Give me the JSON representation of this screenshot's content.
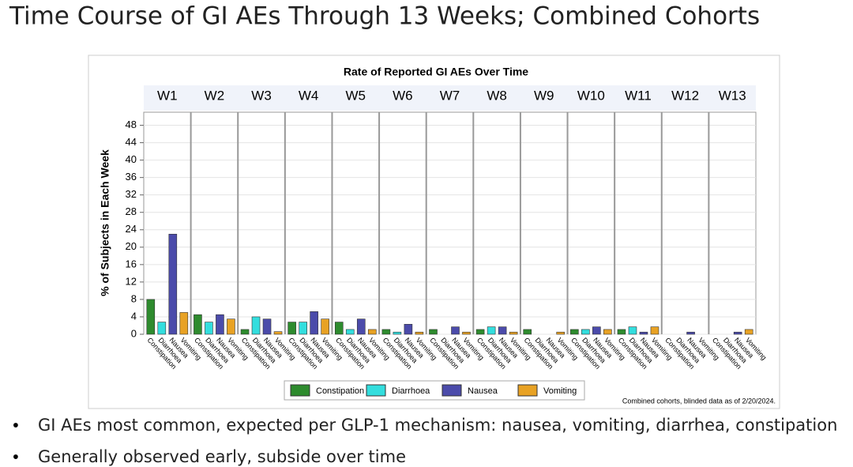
{
  "page_title": "Time Course of GI AEs Through 13 Weeks; Combined Cohorts",
  "chart_data": {
    "type": "bar",
    "title": "Rate of Reported GI AEs Over Time",
    "y_label": "% of Subjects in Each Week",
    "categories": [
      "W1",
      "W2",
      "W3",
      "W4",
      "W5",
      "W6",
      "W7",
      "W8",
      "W9",
      "W10",
      "W11",
      "W12",
      "W13"
    ],
    "series": [
      {
        "name": "Constipation",
        "color": "#2e8b2e",
        "values": [
          8,
          4.5,
          1.1,
          2.8,
          2.8,
          1.1,
          1.1,
          1.1,
          1.1,
          1.1,
          1.1,
          0,
          0
        ]
      },
      {
        "name": "Diarrhoea",
        "color": "#33dede",
        "values": [
          2.8,
          2.8,
          4,
          2.8,
          1.1,
          0.5,
          0,
          1.7,
          0,
          1.1,
          1.7,
          0,
          0
        ]
      },
      {
        "name": "Nausea",
        "color": "#4b4baa",
        "values": [
          23,
          4.5,
          3.5,
          5.2,
          3.5,
          2.3,
          1.7,
          1.7,
          0,
          1.7,
          0.5,
          0.5,
          0.5
        ]
      },
      {
        "name": "Vomiting",
        "color": "#e8a224",
        "values": [
          5,
          3.5,
          0.6,
          3.5,
          1.1,
          0.5,
          0.5,
          0.5,
          0.5,
          1.1,
          1.7,
          0,
          1.1
        ]
      }
    ],
    "ylim": [
      0,
      51
    ],
    "yticks": [
      0,
      4,
      8,
      12,
      16,
      20,
      24,
      28,
      32,
      36,
      40,
      44,
      48
    ],
    "grid": true,
    "footnote": "Combined cohorts, blinded data as of 2/20/2024."
  },
  "bullets": [
    "GI AEs most common, expected per GLP-1 mechanism: nausea, vomiting, diarrhea, constipation",
    "Generally observed early, subside over time"
  ]
}
